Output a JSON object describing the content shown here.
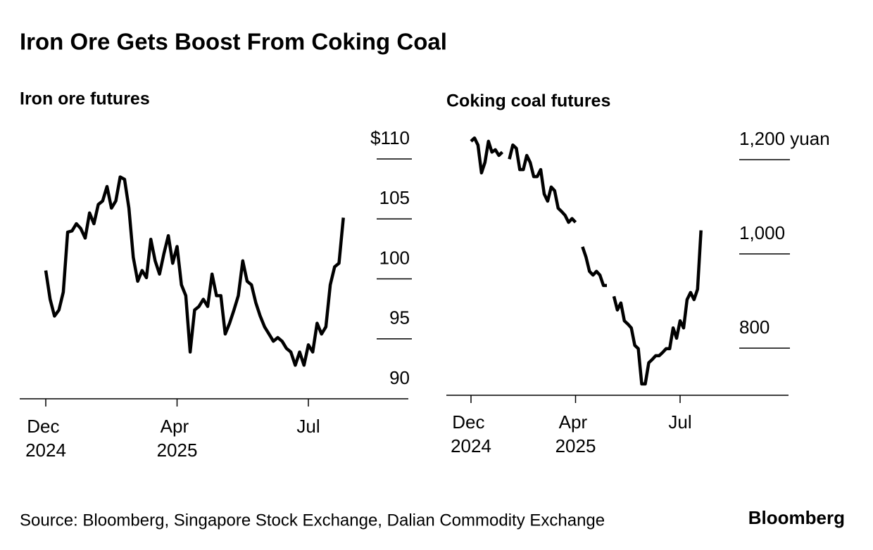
{
  "title": "Iron Ore Gets Boost From Coking Coal",
  "source": "Source: Bloomberg, Singapore Stock Exchange, Dalian Commodity Exchange",
  "logo": "Bloomberg",
  "chart_data": [
    {
      "type": "line",
      "title": "Iron ore futures",
      "color": "#000000",
      "categories": [
        "Dec 2024",
        null,
        null,
        null,
        null,
        null,
        null,
        null,
        null,
        null,
        null,
        null,
        null,
        null,
        null,
        null,
        null,
        null,
        null,
        null,
        null,
        null,
        null,
        null,
        null,
        null,
        null,
        null,
        null,
        null,
        "Apr 2025",
        null,
        null,
        null,
        null,
        null,
        null,
        null,
        null,
        null,
        null,
        null,
        null,
        null,
        null,
        null,
        null,
        null,
        null,
        null,
        null,
        null,
        null,
        null,
        null,
        null,
        null,
        null,
        null,
        null,
        "Jul",
        null,
        null,
        null,
        null,
        null,
        null,
        null,
        null
      ],
      "values": [
        100.7,
        98.3,
        96.9,
        97.4,
        98.9,
        103.9,
        104.0,
        104.6,
        104.2,
        103.4,
        105.5,
        104.6,
        106.2,
        106.5,
        107.7,
        105.9,
        106.5,
        108.5,
        108.3,
        105.9,
        101.8,
        99.8,
        100.7,
        100.1,
        103.3,
        101.5,
        100.4,
        102.1,
        103.6,
        101.3,
        102.7,
        99.5,
        98.6,
        93.9,
        97.4,
        97.7,
        98.3,
        97.7,
        100.4,
        98.6,
        98.6,
        95.4,
        96.3,
        97.4,
        98.6,
        101.5,
        99.8,
        99.5,
        98.0,
        96.9,
        96.0,
        95.4,
        94.8,
        95.1,
        94.8,
        94.2,
        93.9,
        92.8,
        93.9,
        92.8,
        94.5,
        93.9,
        96.3,
        95.4,
        96.0,
        99.5,
        101.0,
        101.3,
        105.1
      ],
      "ylim": [
        90,
        110
      ],
      "yticks": [
        90,
        95,
        100,
        105,
        {
          "value": 110,
          "label": "$110"
        }
      ]
    },
    {
      "type": "line",
      "title": "Coking coal futures",
      "color": "#000000",
      "categories": [
        "Dec 2024",
        null,
        null,
        null,
        null,
        null,
        null,
        null,
        null,
        null,
        null,
        null,
        null,
        null,
        null,
        null,
        null,
        null,
        null,
        null,
        null,
        null,
        null,
        null,
        null,
        null,
        null,
        null,
        null,
        null,
        "Apr 2025",
        null,
        null,
        null,
        null,
        null,
        null,
        null,
        null,
        null,
        null,
        null,
        null,
        null,
        null,
        null,
        null,
        null,
        null,
        null,
        null,
        null,
        null,
        null,
        null,
        null,
        null,
        null,
        null,
        null,
        "Jul",
        null,
        null,
        null,
        null,
        null,
        null
      ],
      "values": [
        1239,
        1246,
        1231,
        1172,
        1194,
        1239,
        1216,
        1221,
        1209,
        1216,
        null,
        1201,
        1231,
        1224,
        1179,
        1179,
        1209,
        1194,
        1164,
        1164,
        1179,
        1127,
        1112,
        1142,
        1134,
        1097,
        1090,
        1082,
        1067,
        1075,
        1067,
        null,
        1015,
        993,
        963,
        955,
        963,
        955,
        933,
        933,
        null,
        910,
        881,
        896,
        858,
        851,
        843,
        806,
        799,
        724,
        724,
        769,
        776,
        784,
        784,
        791,
        799,
        799,
        843,
        821,
        858,
        843,
        903,
        918,
        903,
        925,
        1050
      ],
      "ylim": [
        700,
        1250
      ],
      "yticks": [
        800,
        {
          "value": 1000,
          "label": "1,000"
        },
        {
          "value": 1200,
          "label": "1,200 yuan"
        }
      ]
    }
  ]
}
